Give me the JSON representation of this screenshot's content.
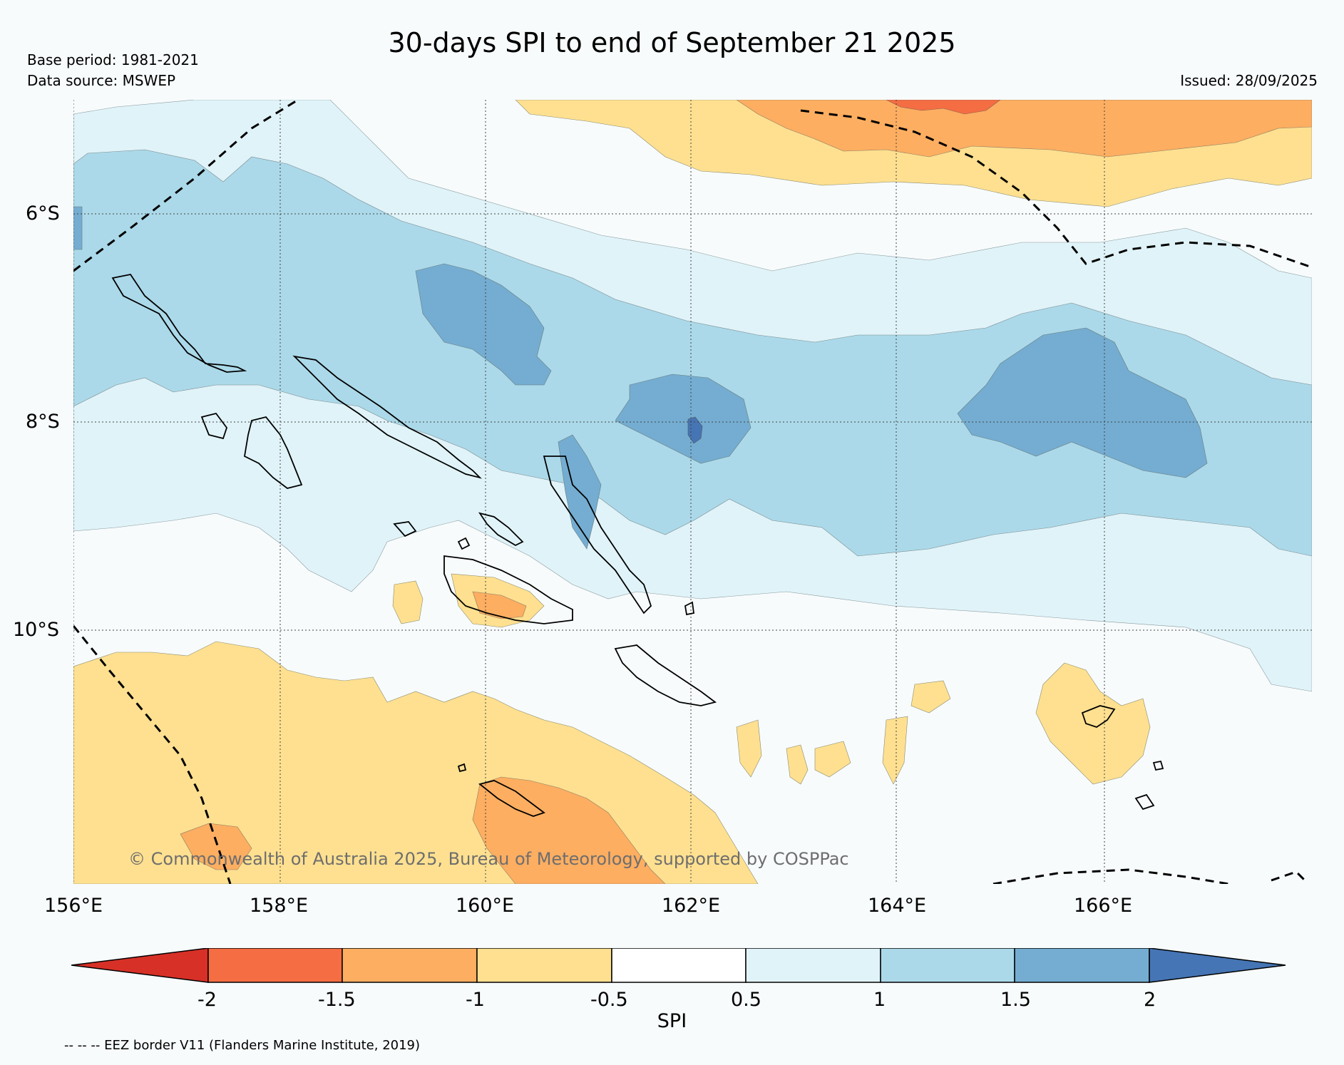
{
  "title": "30-days SPI to end of September 21 2025",
  "base_period": "Base period: 1981-2021",
  "data_source": "Data source: MSWEP",
  "issued": "Issued: 28/09/2025",
  "copyright": "© Commonwealth of Australia 2025, Bureau of Meteorology, supported by COSPPac",
  "footnote": "-- -- -- EEZ border V11 (Flanders Marine Institute, 2019)",
  "lat_labels": [
    "6°S",
    "8°S",
    "10°S"
  ],
  "lon_labels": [
    "156°E",
    "158°E",
    "160°E",
    "162°E",
    "164°E",
    "166°E"
  ],
  "colorbar": {
    "label": "SPI",
    "ticks": [
      "-2",
      "-1.5",
      "-1",
      "-0.5",
      "0.5",
      "1",
      "1.5",
      "2"
    ],
    "colors": {
      "below_-2": "#d73027",
      "-2_-1.5": "#f46d43",
      "-1.5_-1": "#fdae61",
      "-1_-0.5": "#fee090",
      "-0.5_0.5": "#f7fbfc",
      "0.5_1": "#e0f3f8",
      "1_1.5": "#abd9e9",
      "1.5_2": "#74add1",
      "above_2": "#4575b4"
    }
  }
}
